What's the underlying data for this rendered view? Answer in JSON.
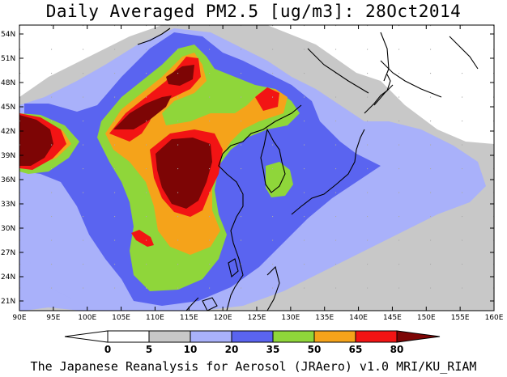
{
  "title": "Daily Averaged PM2.5 [ug/m3]: 28Oct2014",
  "footer": "The Japanese Reanalysis for Aerosol (JRAero) v1.0 MRI/KU_RIAM",
  "map": {
    "lon_labels": [
      "90E",
      "95E",
      "100E",
      "105E",
      "110E",
      "115E",
      "120E",
      "125E",
      "130E",
      "135E",
      "140E",
      "145E",
      "150E",
      "155E",
      "160E"
    ],
    "lat_labels": [
      "54N",
      "51N",
      "48N",
      "45N",
      "42N",
      "39N",
      "36N",
      "33N",
      "30N",
      "27N",
      "24N",
      "21N"
    ]
  },
  "legend": {
    "labels": [
      "0",
      "5",
      "10",
      "20",
      "35",
      "50",
      "65",
      "80"
    ],
    "colors": {
      "c0_5": "#ffffff",
      "c5_10": "#c8c8c8",
      "c10_20": "#a9b1fa",
      "c20_35": "#5a64f0",
      "c35_50": "#8fd63a",
      "c50_65": "#f5a31a",
      "c65_80": "#f21414",
      "c80": "#7d0505"
    }
  }
}
